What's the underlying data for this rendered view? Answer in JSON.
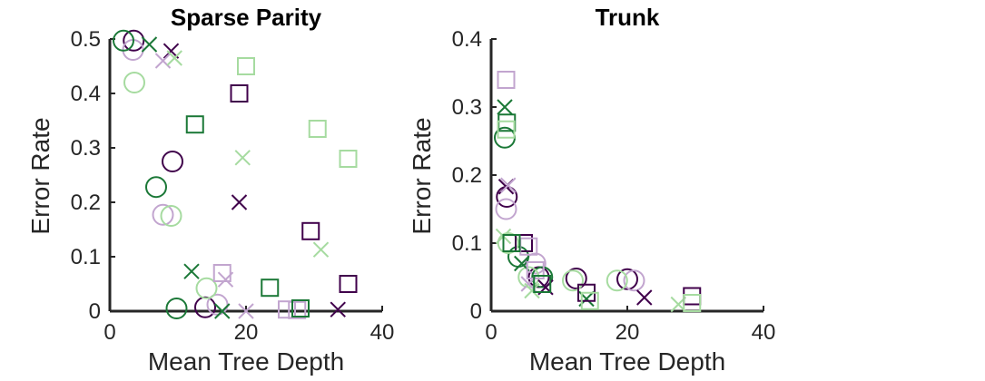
{
  "colors": {
    "dark_purple": "#40004b",
    "light_purple": "#c2a5cf",
    "dark_green": "#1b7837",
    "light_green": "#a6dba0"
  },
  "chart_data": [
    {
      "type": "scatter",
      "title": "Sparse Parity",
      "xlabel": "Mean Tree Depth",
      "ylabel": "Error Rate",
      "xlim": [
        0,
        40
      ],
      "ylim": [
        0,
        0.5
      ],
      "xticks": [
        "0",
        "20",
        "40"
      ],
      "yticks": [
        "0",
        "0.1",
        "0.2",
        "0.3",
        "0.4",
        "0.5"
      ],
      "grid": false,
      "points": [
        {
          "x": 3.5,
          "y": 0.497,
          "marker": "circle",
          "color": "dark_purple"
        },
        {
          "x": 9.2,
          "y": 0.275,
          "marker": "circle",
          "color": "dark_purple"
        },
        {
          "x": 14.0,
          "y": 0.007,
          "marker": "circle",
          "color": "dark_purple"
        },
        {
          "x": 3.4,
          "y": 0.48,
          "marker": "circle",
          "color": "light_purple"
        },
        {
          "x": 7.8,
          "y": 0.177,
          "marker": "circle",
          "color": "light_purple"
        },
        {
          "x": 15.8,
          "y": 0.012,
          "marker": "circle",
          "color": "light_purple"
        },
        {
          "x": 2.0,
          "y": 0.497,
          "marker": "circle",
          "color": "dark_green"
        },
        {
          "x": 6.8,
          "y": 0.228,
          "marker": "circle",
          "color": "dark_green"
        },
        {
          "x": 9.8,
          "y": 0.005,
          "marker": "circle",
          "color": "dark_green"
        },
        {
          "x": 3.6,
          "y": 0.42,
          "marker": "circle",
          "color": "light_green"
        },
        {
          "x": 9.0,
          "y": 0.175,
          "marker": "circle",
          "color": "light_green"
        },
        {
          "x": 14.2,
          "y": 0.042,
          "marker": "circle",
          "color": "light_green"
        },
        {
          "x": 9.0,
          "y": 0.478,
          "marker": "x",
          "color": "dark_purple"
        },
        {
          "x": 19.0,
          "y": 0.2,
          "marker": "x",
          "color": "dark_purple"
        },
        {
          "x": 33.5,
          "y": 0.003,
          "marker": "x",
          "color": "dark_purple"
        },
        {
          "x": 7.8,
          "y": 0.46,
          "marker": "x",
          "color": "light_purple"
        },
        {
          "x": 17.0,
          "y": 0.058,
          "marker": "x",
          "color": "light_purple"
        },
        {
          "x": 20.0,
          "y": 0.0,
          "marker": "x",
          "color": "light_purple"
        },
        {
          "x": 5.8,
          "y": 0.49,
          "marker": "x",
          "color": "dark_green"
        },
        {
          "x": 12.0,
          "y": 0.073,
          "marker": "x",
          "color": "dark_green"
        },
        {
          "x": 16.5,
          "y": 0.0,
          "marker": "x",
          "color": "dark_green"
        },
        {
          "x": 9.5,
          "y": 0.465,
          "marker": "x",
          "color": "light_green"
        },
        {
          "x": 19.5,
          "y": 0.282,
          "marker": "x",
          "color": "light_green"
        },
        {
          "x": 31.0,
          "y": 0.113,
          "marker": "x",
          "color": "light_green"
        },
        {
          "x": 19.0,
          "y": 0.4,
          "marker": "square",
          "color": "dark_purple"
        },
        {
          "x": 29.5,
          "y": 0.147,
          "marker": "square",
          "color": "dark_purple"
        },
        {
          "x": 35.0,
          "y": 0.05,
          "marker": "square",
          "color": "dark_purple"
        },
        {
          "x": 16.5,
          "y": 0.07,
          "marker": "square",
          "color": "light_purple"
        },
        {
          "x": 26.0,
          "y": 0.003,
          "marker": "square",
          "color": "light_purple"
        },
        {
          "x": 27.5,
          "y": 0.002,
          "marker": "square",
          "color": "light_purple"
        },
        {
          "x": 12.5,
          "y": 0.343,
          "marker": "square",
          "color": "dark_green"
        },
        {
          "x": 23.5,
          "y": 0.043,
          "marker": "square",
          "color": "dark_green"
        },
        {
          "x": 28.0,
          "y": 0.005,
          "marker": "square",
          "color": "dark_green"
        },
        {
          "x": 20.0,
          "y": 0.45,
          "marker": "square",
          "color": "light_green"
        },
        {
          "x": 30.5,
          "y": 0.335,
          "marker": "square",
          "color": "light_green"
        },
        {
          "x": 35.0,
          "y": 0.28,
          "marker": "square",
          "color": "light_green"
        }
      ]
    },
    {
      "type": "scatter",
      "title": "Trunk",
      "xlabel": "Mean Tree Depth",
      "ylabel": "Error Rate",
      "xlim": [
        0,
        40
      ],
      "ylim": [
        0,
        0.4
      ],
      "xticks": [
        "0",
        "20",
        "40"
      ],
      "yticks": [
        "0",
        "0.1",
        "0.2",
        "0.3",
        "0.4"
      ],
      "grid": false,
      "points": [
        {
          "x": 2.3,
          "y": 0.168,
          "marker": "circle",
          "color": "dark_purple"
        },
        {
          "x": 7.0,
          "y": 0.05,
          "marker": "circle",
          "color": "dark_purple"
        },
        {
          "x": 12.5,
          "y": 0.048,
          "marker": "circle",
          "color": "dark_purple"
        },
        {
          "x": 20.0,
          "y": 0.047,
          "marker": "circle",
          "color": "dark_purple"
        },
        {
          "x": 2.2,
          "y": 0.15,
          "marker": "circle",
          "color": "light_purple"
        },
        {
          "x": 6.5,
          "y": 0.07,
          "marker": "circle",
          "color": "light_purple"
        },
        {
          "x": 21.0,
          "y": 0.045,
          "marker": "circle",
          "color": "light_purple"
        },
        {
          "x": 2.0,
          "y": 0.255,
          "marker": "circle",
          "color": "dark_green"
        },
        {
          "x": 4.0,
          "y": 0.08,
          "marker": "circle",
          "color": "dark_green"
        },
        {
          "x": 7.5,
          "y": 0.05,
          "marker": "circle",
          "color": "dark_green"
        },
        {
          "x": 2.5,
          "y": 0.1,
          "marker": "circle",
          "color": "light_green"
        },
        {
          "x": 5.5,
          "y": 0.05,
          "marker": "circle",
          "color": "light_green"
        },
        {
          "x": 12.0,
          "y": 0.045,
          "marker": "circle",
          "color": "light_green"
        },
        {
          "x": 18.5,
          "y": 0.045,
          "marker": "circle",
          "color": "light_green"
        },
        {
          "x": 2.2,
          "y": 0.183,
          "marker": "x",
          "color": "dark_purple"
        },
        {
          "x": 8.0,
          "y": 0.035,
          "marker": "x",
          "color": "dark_purple"
        },
        {
          "x": 22.5,
          "y": 0.02,
          "marker": "x",
          "color": "dark_purple"
        },
        {
          "x": 2.5,
          "y": 0.185,
          "marker": "x",
          "color": "light_purple"
        },
        {
          "x": 5.5,
          "y": 0.04,
          "marker": "x",
          "color": "light_purple"
        },
        {
          "x": 2.0,
          "y": 0.3,
          "marker": "x",
          "color": "dark_green"
        },
        {
          "x": 4.5,
          "y": 0.07,
          "marker": "x",
          "color": "dark_green"
        },
        {
          "x": 14.0,
          "y": 0.018,
          "marker": "x",
          "color": "dark_green"
        },
        {
          "x": 1.8,
          "y": 0.11,
          "marker": "x",
          "color": "light_green"
        },
        {
          "x": 6.0,
          "y": 0.03,
          "marker": "x",
          "color": "light_green"
        },
        {
          "x": 27.5,
          "y": 0.01,
          "marker": "x",
          "color": "light_green"
        },
        {
          "x": 4.8,
          "y": 0.1,
          "marker": "square",
          "color": "dark_purple"
        },
        {
          "x": 14.0,
          "y": 0.027,
          "marker": "square",
          "color": "dark_purple"
        },
        {
          "x": 29.5,
          "y": 0.022,
          "marker": "square",
          "color": "dark_purple"
        },
        {
          "x": 2.2,
          "y": 0.34,
          "marker": "square",
          "color": "light_purple"
        },
        {
          "x": 5.5,
          "y": 0.095,
          "marker": "square",
          "color": "light_purple"
        },
        {
          "x": 6.5,
          "y": 0.06,
          "marker": "square",
          "color": "light_purple"
        },
        {
          "x": 2.3,
          "y": 0.277,
          "marker": "square",
          "color": "dark_green"
        },
        {
          "x": 3.0,
          "y": 0.1,
          "marker": "square",
          "color": "dark_green"
        },
        {
          "x": 7.5,
          "y": 0.04,
          "marker": "square",
          "color": "dark_green"
        },
        {
          "x": 2.2,
          "y": 0.267,
          "marker": "square",
          "color": "light_green"
        },
        {
          "x": 14.5,
          "y": 0.015,
          "marker": "square",
          "color": "light_green"
        },
        {
          "x": 29.5,
          "y": 0.012,
          "marker": "square",
          "color": "light_green"
        }
      ]
    }
  ]
}
